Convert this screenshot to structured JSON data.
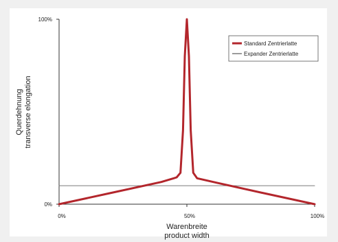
{
  "chart_data": {
    "type": "line",
    "title": "",
    "xlabel": [
      "Warenbreite",
      "product width"
    ],
    "ylabel": [
      "Querdehnung",
      "transverse elongation"
    ],
    "xlim": [
      0,
      100
    ],
    "ylim": [
      0,
      100
    ],
    "x_ticks": [
      "0%",
      "50%",
      "100%"
    ],
    "y_ticks": [
      "0%",
      "100%"
    ],
    "grid": false,
    "legend_position": "top-right",
    "series": [
      {
        "name": "Standard Zentrierlatte",
        "color": "#b3262c",
        "x": [
          0,
          20,
          40,
          46,
          47.5,
          48.5,
          49.2,
          50,
          50.8,
          51.5,
          52.5,
          54,
          62,
          80,
          100
        ],
        "y": [
          0,
          6,
          12,
          14.5,
          17,
          40,
          80,
          100,
          80,
          40,
          17,
          14,
          11.5,
          6,
          0
        ]
      },
      {
        "name": "Expander Zentrierlatte",
        "color": "#7a7a7a",
        "x": [
          0,
          100
        ],
        "y": [
          10,
          10
        ]
      }
    ]
  }
}
